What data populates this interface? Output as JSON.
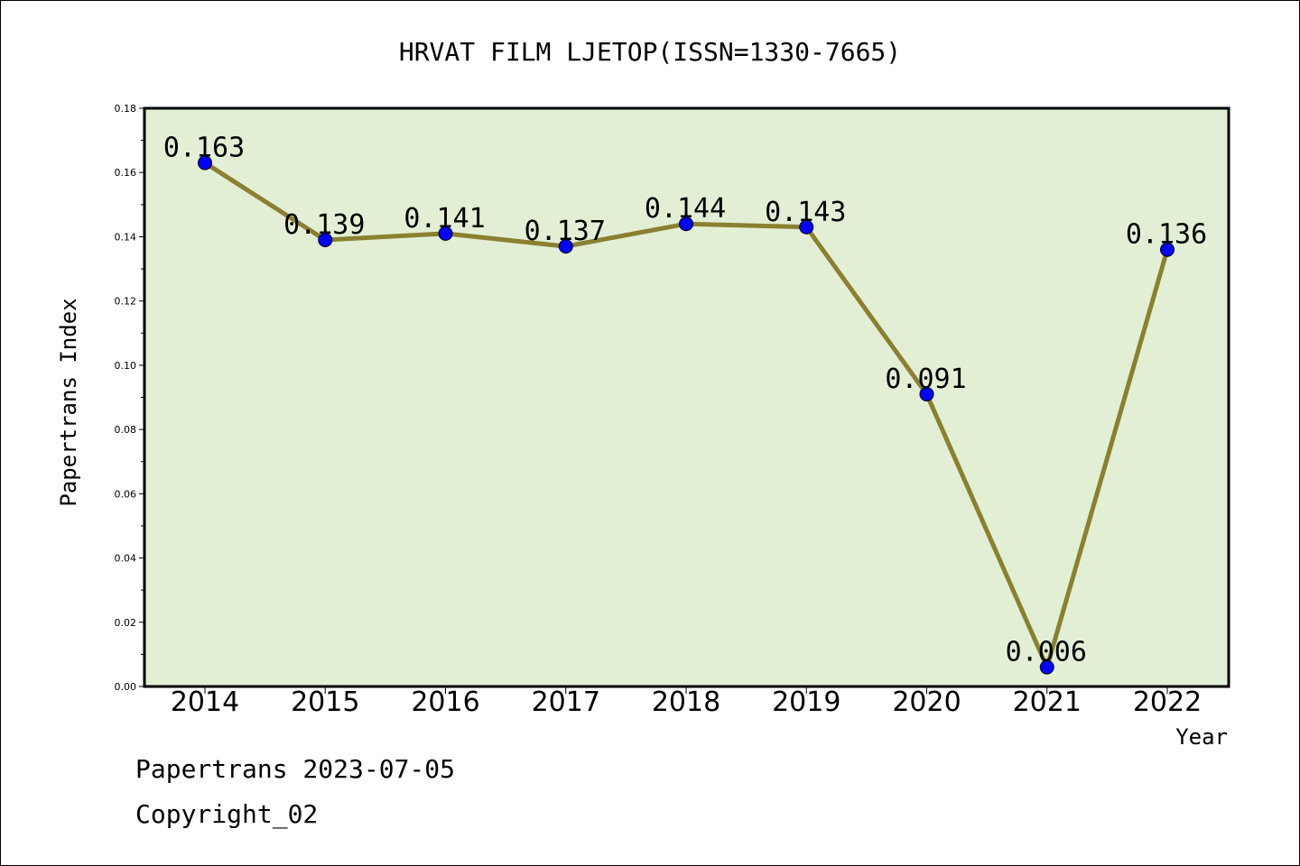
{
  "chart_data": {
    "type": "line",
    "title": "HRVAT FILM LJETOP(ISSN=1330-7665)",
    "xlabel": "Year",
    "ylabel": "Papertrans Index",
    "categories": [
      "2014",
      "2015",
      "2016",
      "2017",
      "2018",
      "2019",
      "2020",
      "2021",
      "2022"
    ],
    "series": [
      {
        "values": [
          0.163,
          0.139,
          0.141,
          0.137,
          0.144,
          0.143,
          0.091,
          0.006,
          0.136
        ],
        "data_labels": [
          "0.163",
          "0.139",
          "0.141",
          "0.137",
          "0.144",
          "0.143",
          "0.091",
          "0.006",
          "0.136"
        ]
      }
    ],
    "ylim": [
      0,
      0.18
    ],
    "yticks": [
      "0.00",
      "0.02",
      "0.04",
      "0.06",
      "0.08",
      "0.10",
      "0.12",
      "0.14",
      "0.16",
      "0.18"
    ],
    "grid": false,
    "colors": {
      "line": "#8b8030",
      "marker": "#0000ff",
      "plot_bg": "#e2efd5"
    }
  },
  "footer": {
    "line1": "Papertrans 2023-07-05",
    "line2": "Copyright_02"
  }
}
